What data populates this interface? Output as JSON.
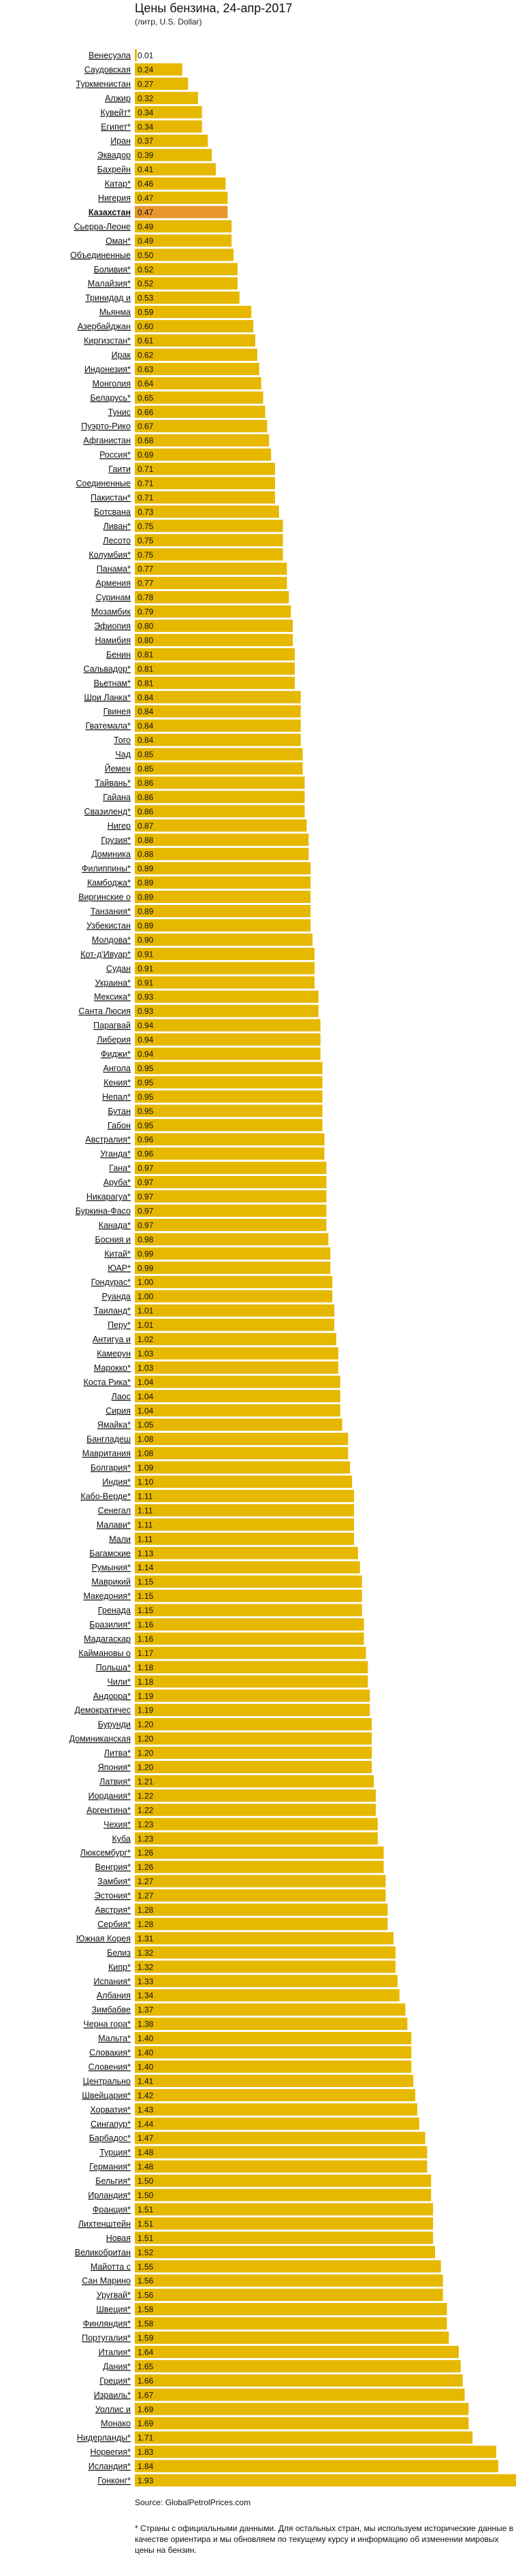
{
  "chart_data": {
    "type": "bar",
    "orientation": "horizontal",
    "title": "Цены бензина, 24-апр-2017",
    "subtitle": "(литр, U.S. Dollar)",
    "xlim": [
      0,
      1.93
    ],
    "x_ticks": [
      {
        "value": 0,
        "label": "0"
      },
      {
        "value": 0.5,
        "label": "0.5"
      },
      {
        "value": 1,
        "label": "1"
      },
      {
        "value": 1.4,
        "label": "1.4"
      },
      {
        "value": 1.93,
        "label": "1.93"
      }
    ],
    "colors": {
      "bar": "#e6b800",
      "highlight": "#e8962e",
      "axis": "#333333"
    },
    "highlight_category": "Казахстан",
    "categories": [
      "Венесуэла",
      "Саудовская",
      "Туркменистан",
      "Алжир",
      "Кувейт*",
      "Египет*",
      "Иран",
      "Эквадор",
      "Бахрейн",
      "Катар*",
      "Нигерия",
      "Казахстан",
      "Сьерра-Леоне",
      "Оман*",
      "Объединенные",
      "Боливия*",
      "Малайзия*",
      "Тринидад и",
      "Мьянма",
      "Азербайджан",
      "Киргизстан*",
      "Ирак",
      "Индонезия*",
      "Монголия",
      "Беларусь*",
      "Тунис",
      "Пуэрто-Рико",
      "Афганистан",
      "Россия*",
      "Гаити",
      "Соединенные",
      "Пакистан*",
      "Ботсвана",
      "Ливан*",
      "Лесото",
      "Колумбия*",
      "Панама*",
      "Армения",
      "Суринам",
      "Мозамбик",
      "Эфиопия",
      "Намибия",
      "Бенин",
      "Сальвадор*",
      "Вьетнам*",
      "Шри Ланка*",
      "Гвинея",
      "Гватемала*",
      "Того",
      "Чад",
      "Йемен",
      "Тайвань*",
      "Гайана",
      "Свазиленд*",
      "Нигер",
      "Грузия*",
      "Доминика",
      "Филиппины*",
      "Камбоджа*",
      "Виргинские о",
      "Танзания*",
      "Узбекистан",
      "Молдова*",
      "Кот-д'Ивуар*",
      "Судан",
      "Украина*",
      "Мексика*",
      "Санта Люсия",
      "Парагвай",
      "Либерия",
      "Фиджи*",
      "Ангола",
      "Кения*",
      "Непал*",
      "Бутан",
      "Габон",
      "Австралия*",
      "Уганда*",
      "Гана*",
      "Аруба*",
      "Никарагуа*",
      "Буркина-Фасо",
      "Канада*",
      "Босния и",
      "Китай*",
      "ЮАР*",
      "Гондурас*",
      "Руанда",
      "Таиланд*",
      "Перу*",
      "Антигуа и",
      "Камерун",
      "Мароккo*",
      "Коста Рика*",
      "Лаос",
      "Сирия",
      "Ямайка*",
      "Бангладеш",
      "Мавритания",
      "Болгария*",
      "Индия*",
      "Кабо-Верде*",
      "Сенегал",
      "Малави*",
      "Мали",
      "Багамские",
      "Румыния*",
      "Маврикий",
      "Македония*",
      "Гренада",
      "Бразилия*",
      "Мадагаскар",
      "Каймановы о",
      "Польша*",
      "Чили*",
      "Андорра*",
      "Демократичес",
      "Бурунди",
      "Доминиканская",
      "Литва*",
      "Япония*",
      "Латвия*",
      "Иордания*",
      "Аргентина*",
      "Чехия*",
      "Куба",
      "Люксембург*",
      "Венгрия*",
      "Замбия*",
      "Эстония*",
      "Австрия*",
      "Сербия*",
      "Южная Корея",
      "Белиз",
      "Кипр*",
      "Испания*",
      "Албания",
      "Зимбабве",
      "Черна гора*",
      "Мальта*",
      "Словакия*",
      "Словения*",
      "Центрально",
      "Швейцария*",
      "Хорватия*",
      "Сингапур*",
      "Барбадос*",
      "Турция*",
      "Германия*",
      "Бельгия*",
      "Ирландия*",
      "Франция*",
      "Лихтенштейн",
      "Новая",
      "Великобритан",
      "Майотта с",
      "Сан Марино",
      "Уругвай*",
      "Швеция*",
      "Финляндия*",
      "Португалия*",
      "Италия*",
      "Дания*",
      "Греция*",
      "Израиль*",
      "Уоллис и",
      "Монако",
      "Нидерланды*",
      "Норвегия*",
      "Исландия*",
      "Гонконг*"
    ],
    "values": [
      0.01,
      0.24,
      0.27,
      0.32,
      0.34,
      0.34,
      0.37,
      0.39,
      0.41,
      0.46,
      0.47,
      0.47,
      0.49,
      0.49,
      0.5,
      0.52,
      0.52,
      0.53,
      0.59,
      0.6,
      0.61,
      0.62,
      0.63,
      0.64,
      0.65,
      0.66,
      0.67,
      0.68,
      0.69,
      0.71,
      0.71,
      0.71,
      0.73,
      0.75,
      0.75,
      0.75,
      0.77,
      0.77,
      0.78,
      0.79,
      0.8,
      0.8,
      0.81,
      0.81,
      0.81,
      0.84,
      0.84,
      0.84,
      0.84,
      0.85,
      0.85,
      0.86,
      0.86,
      0.86,
      0.87,
      0.88,
      0.88,
      0.89,
      0.89,
      0.89,
      0.89,
      0.89,
      0.9,
      0.91,
      0.91,
      0.91,
      0.93,
      0.93,
      0.94,
      0.94,
      0.94,
      0.95,
      0.95,
      0.95,
      0.95,
      0.95,
      0.96,
      0.96,
      0.97,
      0.97,
      0.97,
      0.97,
      0.97,
      0.98,
      0.99,
      0.99,
      1.0,
      1.0,
      1.01,
      1.01,
      1.02,
      1.03,
      1.03,
      1.04,
      1.04,
      1.04,
      1.05,
      1.08,
      1.08,
      1.09,
      1.1,
      1.11,
      1.11,
      1.11,
      1.11,
      1.13,
      1.14,
      1.15,
      1.15,
      1.15,
      1.16,
      1.16,
      1.17,
      1.18,
      1.18,
      1.19,
      1.19,
      1.2,
      1.2,
      1.2,
      1.2,
      1.21,
      1.22,
      1.22,
      1.23,
      1.23,
      1.26,
      1.26,
      1.27,
      1.27,
      1.28,
      1.28,
      1.31,
      1.32,
      1.32,
      1.33,
      1.34,
      1.37,
      1.38,
      1.4,
      1.4,
      1.4,
      1.41,
      1.42,
      1.43,
      1.44,
      1.47,
      1.48,
      1.48,
      1.5,
      1.5,
      1.51,
      1.51,
      1.51,
      1.52,
      1.55,
      1.56,
      1.56,
      1.58,
      1.58,
      1.59,
      1.64,
      1.65,
      1.66,
      1.67,
      1.69,
      1.69,
      1.71,
      1.83,
      1.84,
      1.93
    ]
  },
  "source": "Source: GlobalPetrolPrices.com",
  "footnote": "* Страны с официальными данными. Для остальных стран, мы используем исторические данные в качестве ориентира и мы обновляем по текущему курсу и информацию об изменении мировых цены на бензин."
}
